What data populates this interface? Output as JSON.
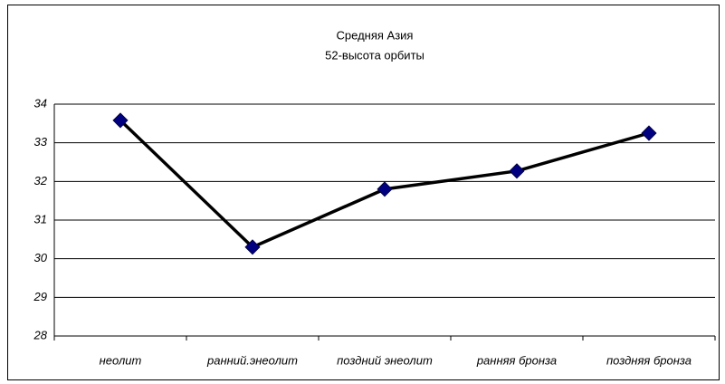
{
  "chart_data": {
    "type": "line",
    "title": "Средняя Азия",
    "subtitle": "52-высота орбиты",
    "categories": [
      "неолит",
      "ранний.энеолит",
      "поздний энеолит",
      "ранняя бронза",
      "поздняя бронза"
    ],
    "series": [
      {
        "name": "52-высота орбиты",
        "color": "#000000",
        "marker_color": "#000080",
        "values": [
          33.58,
          30.3,
          31.8,
          32.27,
          33.25
        ]
      }
    ],
    "ylim": [
      28,
      34
    ],
    "yticks": [
      28,
      29,
      30,
      31,
      32,
      33,
      34
    ],
    "grid": true
  }
}
